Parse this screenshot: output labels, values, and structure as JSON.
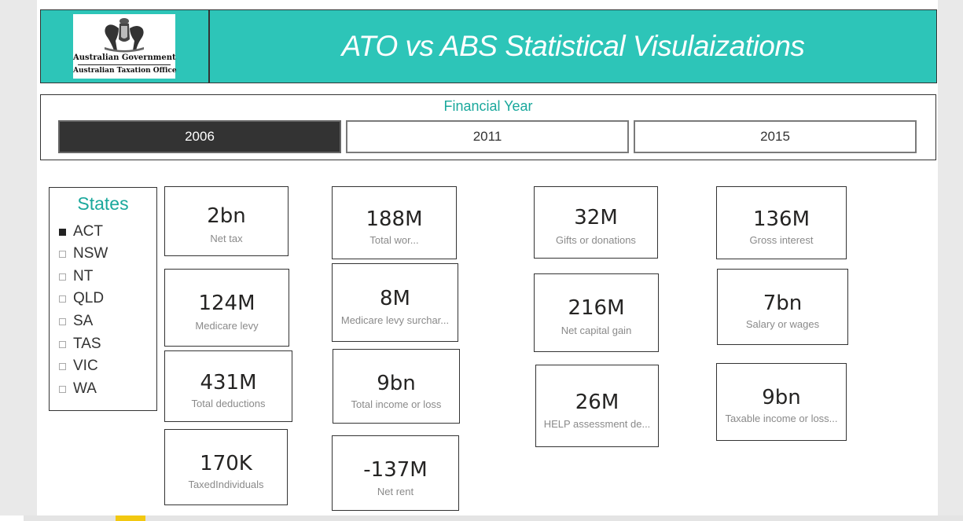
{
  "header": {
    "logo_line1": "Australian Government",
    "logo_line2": "Australian Taxation Office",
    "title": "ATO vs ABS Statistical Visulaizations"
  },
  "financial_year": {
    "title": "Financial Year",
    "options": [
      "2006",
      "2011",
      "2015"
    ],
    "selected": "2006"
  },
  "states": {
    "title": "States",
    "items": [
      {
        "label": "ACT",
        "checked": true
      },
      {
        "label": "NSW",
        "checked": false
      },
      {
        "label": "NT",
        "checked": false
      },
      {
        "label": "QLD",
        "checked": false
      },
      {
        "label": "SA",
        "checked": false
      },
      {
        "label": "TAS",
        "checked": false
      },
      {
        "label": "VIC",
        "checked": false
      },
      {
        "label": "WA",
        "checked": false
      }
    ]
  },
  "cards": {
    "net_tax": {
      "value": "2bn",
      "label": "Net tax"
    },
    "medicare_levy": {
      "value": "124M",
      "label": "Medicare levy"
    },
    "total_deductions": {
      "value": "431M",
      "label": "Total deductions"
    },
    "taxed_individuals": {
      "value": "170K",
      "label": "TaxedIndividuals"
    },
    "total_work": {
      "value": "188M",
      "label": "Total wor..."
    },
    "medicare_levy_surcharge": {
      "value": "8M",
      "label": "Medicare levy surchar..."
    },
    "total_income": {
      "value": "9bn",
      "label": "Total income or loss"
    },
    "net_rent": {
      "value": "-137M",
      "label": "Net rent"
    },
    "gifts": {
      "value": "32M",
      "label": "Gifts or donations"
    },
    "net_capital_gain": {
      "value": "216M",
      "label": "Net capital gain"
    },
    "help_assessment": {
      "value": "26M",
      "label": "HELP assessment de..."
    },
    "gross_interest": {
      "value": "136M",
      "label": "Gross interest"
    },
    "salary_wages": {
      "value": "7bn",
      "label": "Salary or wages"
    },
    "taxable_income": {
      "value": "9bn",
      "label": "Taxable income or loss..."
    }
  },
  "colors": {
    "accent": "#2dc5b8",
    "accent_text": "#1aa89c",
    "selected_button": "#333333",
    "report_tab": "#f2c811"
  }
}
